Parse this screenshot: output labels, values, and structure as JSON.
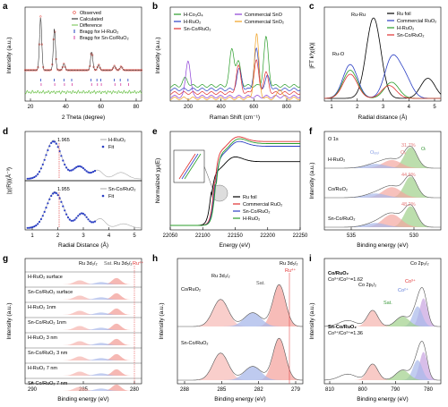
{
  "colors": {
    "observed": "#e8453c",
    "calculated": "#111111",
    "difference": "#6cc24a",
    "bragg1": "#1f3fbf",
    "bragg2": "#d43fa0",
    "hco3o4": "#2a9d2a",
    "hruo2": "#2b3fc4",
    "sncoruo2": "#e03030",
    "commsno": "#8c3fd6",
    "commsno2": "#f0a020",
    "rufoil": "#000000",
    "commruo2": "#2b3fc4",
    "fill_red": "#f4a6a0",
    "fill_green": "#9fd08a",
    "fill_blue": "#a8b8ea",
    "fill_purple": "#c7a2e0"
  },
  "panels": {
    "a": {
      "label": "a",
      "xlabel": "2 Theta (degree)",
      "ylabel": "Intensity (a.u.)",
      "xticks": [
        "20",
        "40",
        "60",
        "80"
      ],
      "legend": [
        "Observed",
        "Calculated",
        "Difference",
        "Bragg for H-RuO₂",
        "Bragg for Sn-Co/RuO₂"
      ]
    },
    "b": {
      "label": "b",
      "xlabel": "Raman Shift (cm⁻¹)",
      "ylabel": "Intensity (a.u.)",
      "xticks": [
        "200",
        "400",
        "600",
        "800"
      ],
      "legend": [
        "H-Co₃O₄",
        "H-RuO₂",
        "Sn-Co/RuO₂",
        "Commercial SnO",
        "Commercial SnO₂"
      ]
    },
    "c": {
      "label": "c",
      "xlabel": "Radial distance (Å)",
      "ylabel": "|FT k³χ(k)|",
      "xticks": [
        "1",
        "2",
        "3",
        "4",
        "5"
      ],
      "legend": [
        "Ru foil",
        "Commercial RuO₂",
        "H-RuO₂",
        "Sn-Co/RuO₂"
      ],
      "ann_ruru": "Ru-Ru",
      "ann_ruo": "Ru-O"
    },
    "d": {
      "label": "d",
      "xlabel": "Radial Distance (Å)",
      "ylabel": "|χ(R)|(Å⁻³)",
      "xticks": [
        "1",
        "2",
        "3",
        "4",
        "5"
      ],
      "top_legend": [
        "H-RuO₂",
        "Fit"
      ],
      "top_peak": "1.965",
      "bot_legend": [
        "Sn-Co/RuO₂",
        "Fit"
      ],
      "bot_peak": "1.955"
    },
    "e": {
      "label": "e",
      "xlabel": "Energy (eV)",
      "ylabel": "Normalized χμ(E)",
      "xticks": [
        "22050",
        "22100",
        "22150",
        "22200",
        "22250"
      ],
      "legend": [
        "Ru foil",
        "Commercial RuO₂",
        "Sn-Co/RuO₂",
        "H-RuO₂"
      ]
    },
    "f": {
      "label": "f",
      "xlabel": "Binding energy (eV)",
      "ylabel": "Intensity (a.u.)",
      "xticks": [
        "535",
        "530"
      ],
      "title": "O 1s",
      "rows": [
        {
          "name": "H-RuO₂",
          "pct": "31.7%"
        },
        {
          "name": "Co/RuO₂",
          "pct": "44.9%"
        },
        {
          "name": "Sn-Co/RuO₂",
          "pct": "48.2%"
        }
      ],
      "ann": [
        "Oᵢₒᵤₗ",
        "Oᵥ",
        "Oₗ"
      ]
    },
    "g": {
      "label": "g",
      "xlabel": "Binding energy (eV)",
      "ylabel": "Intensity (a.u.)",
      "xticks": [
        "290",
        "285",
        "280"
      ],
      "rows": [
        "H-RuO₂ surface",
        "Sn-Co/RuO₂ surface",
        "H-RuO₂ 1nm",
        "Sn-Co/RuO₂ 1nm",
        "H-RuO₂ 3 nm",
        "Sn-Co/RuO₂ 3 nm",
        "H-RuO₂ 7 nm",
        "Sn-Co/RuO₂ 7 nm"
      ],
      "ann": [
        "Ru 3d₃/₂",
        "Sat.",
        "Ru 3d₅/₂",
        "Ru⁴⁺"
      ]
    },
    "h": {
      "label": "h",
      "xlabel": "Binding energy (eV)",
      "ylabel": "Intensity (a.u.)",
      "xticks": [
        "288",
        "285",
        "282",
        "279"
      ],
      "rows": [
        "Co/RuO₂",
        "Sn-Co/RuO₂"
      ],
      "ann": [
        "Ru 3d₃/₂",
        "Sat.",
        "Ru 3d₅/₂",
        "Ru⁴⁺"
      ]
    },
    "i": {
      "label": "i",
      "xlabel": "Binding energy (eV)",
      "ylabel": "Intensity (a.u.)",
      "xticks": [
        "810",
        "800",
        "790",
        "780"
      ],
      "rows": [
        {
          "name": "Co/RuO₂",
          "ratio": "Co³⁺/Co²⁺=1.62"
        },
        {
          "name": "Sn-Co/RuO₂",
          "ratio": "Co³⁺/Co²⁺=1.36"
        }
      ],
      "ann": [
        "Co 2p₁/₂",
        "Sat.",
        "Co 2p₃/₂",
        "Co²⁺",
        "Co³⁺"
      ]
    }
  },
  "chart_data": [
    {
      "type": "line",
      "title": "a",
      "xlabel": "2 Theta (degree)",
      "ylabel": "Intensity (a.u.)",
      "xlim": [
        20,
        80
      ],
      "series": [
        {
          "name": "Observed",
          "peaks": [
            [
              28.0,
              1.0
            ],
            [
              35.1,
              0.78
            ],
            [
              40.0,
              0.12
            ],
            [
              54.3,
              0.35
            ],
            [
              57.9,
              0.1
            ],
            [
              66.0,
              0.08
            ],
            [
              69.5,
              0.07
            ]
          ]
        }
      ]
    },
    {
      "type": "line",
      "title": "b",
      "xlabel": "Raman Shift (cm⁻¹)",
      "ylabel": "Intensity (a.u.)",
      "xlim": [
        100,
        900
      ],
      "series": [
        {
          "name": "H-Co₃O₄",
          "peaks": [
            [
              194,
              0.12
            ],
            [
              480,
              0.55
            ],
            [
              520,
              0.35
            ],
            [
              690,
              0.72
            ]
          ]
        },
        {
          "name": "H-RuO₂",
          "peaks": [
            [
              525,
              0.3
            ],
            [
              630,
              0.6
            ],
            [
              700,
              0.2
            ]
          ]
        },
        {
          "name": "Sn-Co/RuO₂",
          "peaks": [
            [
              520,
              0.4
            ],
            [
              630,
              0.48
            ],
            [
              690,
              0.3
            ]
          ]
        },
        {
          "name": "Commercial SnO",
          "peaks": [
            [
              210,
              0.55
            ]
          ]
        },
        {
          "name": "Commercial SnO₂",
          "peaks": [
            [
              632,
              0.95
            ],
            [
              775,
              0.15
            ]
          ]
        }
      ]
    },
    {
      "type": "line",
      "title": "c",
      "xlabel": "Radial distance (Å)",
      "ylabel": "|FT k³χ(k)|",
      "xlim": [
        0.5,
        5
      ],
      "series": [
        {
          "name": "Ru foil",
          "peaks": [
            [
              2.4,
              1.0
            ],
            [
              4.5,
              0.25
            ]
          ]
        },
        {
          "name": "Commercial RuO₂",
          "peaks": [
            [
              1.5,
              0.42
            ],
            [
              3.1,
              0.48
            ],
            [
              3.6,
              0.25
            ]
          ]
        },
        {
          "name": "H-RuO₂",
          "peaks": [
            [
              1.5,
              0.35
            ],
            [
              3.1,
              0.2
            ]
          ]
        },
        {
          "name": "Sn-Co/RuO₂",
          "peaks": [
            [
              1.5,
              0.3
            ],
            [
              3.0,
              0.16
            ]
          ]
        }
      ]
    },
    {
      "type": "line",
      "title": "d",
      "xlabel": "Radial Distance (Å)",
      "xlim": [
        0.5,
        5
      ],
      "series": [
        {
          "name": "H-RuO₂",
          "peak_r": 1.965
        },
        {
          "name": "Sn-Co/RuO₂",
          "peak_r": 1.955
        }
      ]
    },
    {
      "type": "line",
      "title": "e",
      "xlabel": "Energy (eV)",
      "xlim": [
        22050,
        22250
      ],
      "series": [
        {
          "name": "Ru foil"
        },
        {
          "name": "Commercial RuO₂"
        },
        {
          "name": "Sn-Co/RuO₂"
        },
        {
          "name": "H-RuO₂"
        }
      ]
    },
    {
      "type": "line",
      "title": "f",
      "xlabel": "Binding energy (eV)",
      "xlim": [
        538,
        527
      ],
      "series": [
        {
          "name": "H-RuO₂",
          "ov_pct": 31.7
        },
        {
          "name": "Co/RuO₂",
          "ov_pct": 44.9
        },
        {
          "name": "Sn-Co/RuO₂",
          "ov_pct": 48.2
        }
      ]
    },
    {
      "type": "line",
      "title": "i",
      "xlabel": "Binding energy (eV)",
      "xlim": [
        810,
        775
      ],
      "series": [
        {
          "name": "Co/RuO₂",
          "co3_co2": 1.62
        },
        {
          "name": "Sn-Co/RuO₂",
          "co3_co2": 1.36
        }
      ]
    }
  ]
}
